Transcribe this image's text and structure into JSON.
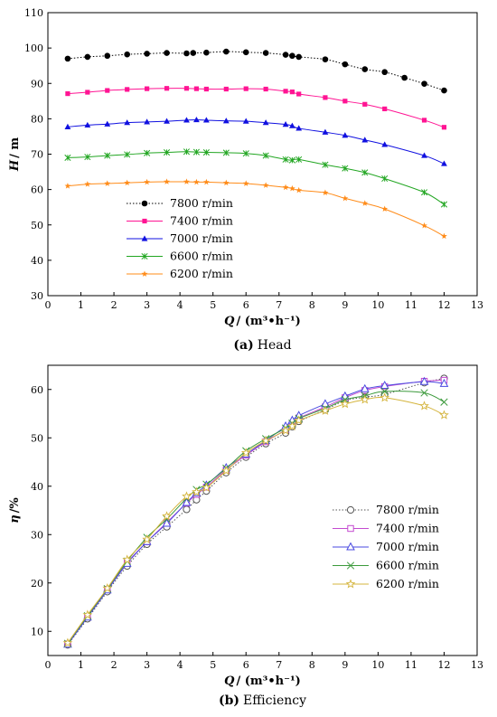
{
  "chart_data": [
    {
      "type": "line",
      "caption_label": "(a)",
      "caption_text": "Head",
      "ylabel_symbol": "H",
      "ylabel_unit": "/ m",
      "xlabel_symbol": "Q",
      "xlabel_unit": "/ (m³•h⁻¹)",
      "xlim": [
        0,
        13
      ],
      "ylim": [
        30,
        110
      ],
      "xticks": [
        "0",
        "1",
        "2",
        "3",
        "4",
        "5",
        "6",
        "7",
        "8",
        "9",
        "10",
        "11",
        "12",
        "13"
      ],
      "yticks": [
        "30",
        "40",
        "50",
        "60",
        "70",
        "80",
        "90",
        "100",
        "110"
      ],
      "legend_position": "bottom-left",
      "series": [
        {
          "name": "7800 r/min",
          "color": "#000000",
          "marker": "circle",
          "dash": "dotted",
          "x": [
            0.6,
            1.2,
            1.8,
            2.4,
            3.0,
            3.6,
            4.2,
            4.4,
            4.8,
            5.4,
            6.0,
            6.6,
            7.2,
            7.4,
            7.6,
            8.4,
            9.0,
            9.6,
            10.2,
            10.8,
            11.4,
            12.0
          ],
          "y": [
            97.0,
            97.5,
            97.8,
            98.2,
            98.4,
            98.6,
            98.5,
            98.6,
            98.7,
            99.0,
            98.8,
            98.6,
            98.1,
            97.8,
            97.5,
            96.8,
            95.4,
            94.0,
            93.2,
            91.6,
            89.9,
            88.0
          ]
        },
        {
          "name": "7400 r/min",
          "color": "#ff1493",
          "marker": "square",
          "dash": "solid",
          "x": [
            0.6,
            1.2,
            1.8,
            2.4,
            3.0,
            3.6,
            4.2,
            4.5,
            4.8,
            5.4,
            6.0,
            6.6,
            7.2,
            7.4,
            7.6,
            8.4,
            9.0,
            9.6,
            10.2,
            11.4,
            12.0
          ],
          "y": [
            87.1,
            87.5,
            88.0,
            88.3,
            88.5,
            88.6,
            88.6,
            88.5,
            88.4,
            88.4,
            88.5,
            88.4,
            87.8,
            87.6,
            87.0,
            86.0,
            85.0,
            84.1,
            82.8,
            79.6,
            77.6
          ]
        },
        {
          "name": "7000 r/min",
          "color": "#1010e0",
          "marker": "triangle",
          "dash": "solid",
          "x": [
            0.6,
            1.2,
            1.8,
            2.4,
            3.0,
            3.6,
            4.2,
            4.5,
            4.8,
            5.4,
            6.0,
            6.6,
            7.2,
            7.4,
            7.6,
            8.4,
            9.0,
            9.6,
            10.2,
            11.4,
            12.0
          ],
          "y": [
            77.7,
            78.2,
            78.5,
            78.9,
            79.1,
            79.3,
            79.6,
            79.7,
            79.6,
            79.4,
            79.3,
            78.9,
            78.4,
            78.0,
            77.3,
            76.2,
            75.3,
            74.0,
            72.7,
            69.6,
            67.3
          ]
        },
        {
          "name": "6600 r/min",
          "color": "#22a622",
          "marker": "cross",
          "dash": "solid",
          "x": [
            0.6,
            1.2,
            1.8,
            2.4,
            3.0,
            3.6,
            4.2,
            4.5,
            4.8,
            5.4,
            6.0,
            6.6,
            7.2,
            7.4,
            7.6,
            8.4,
            9.0,
            9.6,
            10.2,
            11.4,
            12.0
          ],
          "y": [
            69.0,
            69.2,
            69.6,
            69.9,
            70.3,
            70.5,
            70.7,
            70.6,
            70.5,
            70.4,
            70.2,
            69.6,
            68.5,
            68.3,
            68.5,
            67.0,
            66.0,
            64.8,
            63.1,
            59.2,
            55.8
          ]
        },
        {
          "name": "6200 r/min",
          "color": "#ff8c1a",
          "marker": "star",
          "dash": "solid",
          "x": [
            0.6,
            1.2,
            1.8,
            2.4,
            3.0,
            3.6,
            4.2,
            4.5,
            4.8,
            5.4,
            6.0,
            6.6,
            7.2,
            7.4,
            7.6,
            8.4,
            9.0,
            9.6,
            10.2,
            11.4,
            12.0
          ],
          "y": [
            61.0,
            61.5,
            61.7,
            61.9,
            62.1,
            62.2,
            62.2,
            62.1,
            62.1,
            61.9,
            61.7,
            61.2,
            60.6,
            60.3,
            59.8,
            59.1,
            57.5,
            56.1,
            54.5,
            49.8,
            46.8
          ]
        }
      ]
    },
    {
      "type": "line",
      "caption_label": "(b)",
      "caption_text": "Efficiency",
      "ylabel_symbol": "η",
      "ylabel_unit": "/%",
      "xlabel_symbol": "Q",
      "xlabel_unit": "/ (m³•h⁻¹)",
      "xlim": [
        0,
        13
      ],
      "ylim": [
        5,
        65
      ],
      "xticks": [
        "0",
        "1",
        "2",
        "3",
        "4",
        "5",
        "6",
        "7",
        "8",
        "9",
        "10",
        "11",
        "12",
        "13"
      ],
      "yticks": [
        "10",
        "20",
        "30",
        "40",
        "50",
        "60"
      ],
      "legend_position": "bottom-right",
      "series": [
        {
          "name": "7800 r/min",
          "color": "#555555",
          "marker": "circle-open",
          "dash": "dotted",
          "x": [
            0.6,
            1.2,
            1.8,
            2.4,
            3.0,
            3.6,
            4.2,
            4.5,
            4.8,
            5.4,
            6.0,
            6.6,
            7.2,
            7.4,
            7.6,
            8.4,
            9.0,
            9.6,
            10.2,
            11.4,
            12.0
          ],
          "y": [
            7.2,
            12.6,
            18.2,
            23.5,
            28.0,
            31.6,
            35.2,
            37.2,
            39.0,
            42.8,
            46.0,
            48.8,
            51.0,
            52.3,
            53.4,
            55.8,
            57.7,
            58.4,
            59.0,
            61.4,
            62.3
          ]
        },
        {
          "name": "7400 r/min",
          "color": "#c44ad0",
          "marker": "square-open",
          "dash": "solid",
          "x": [
            0.6,
            1.2,
            1.8,
            2.4,
            3.0,
            3.6,
            4.2,
            4.5,
            4.8,
            5.4,
            6.0,
            6.6,
            7.2,
            7.4,
            7.6,
            8.4,
            9.0,
            9.6,
            10.2,
            11.4,
            12.0
          ],
          "y": [
            7.4,
            13.0,
            18.7,
            24.2,
            28.5,
            32.5,
            36.5,
            38.3,
            39.8,
            43.4,
            46.4,
            49.2,
            51.7,
            53.0,
            54.1,
            56.4,
            58.3,
            59.8,
            60.6,
            61.7,
            61.9
          ]
        },
        {
          "name": "7000 r/min",
          "color": "#4a4ae0",
          "marker": "triangle-open",
          "dash": "solid",
          "x": [
            0.6,
            1.2,
            1.8,
            2.4,
            3.0,
            3.6,
            4.2,
            4.5,
            4.8,
            5.4,
            6.0,
            6.6,
            7.2,
            7.4,
            7.6,
            8.4,
            9.0,
            9.6,
            10.2,
            11.4,
            12.0
          ],
          "y": [
            7.3,
            12.9,
            18.5,
            24.0,
            28.5,
            32.3,
            36.6,
            38.6,
            40.2,
            43.8,
            46.6,
            49.4,
            52.4,
            53.6,
            54.6,
            57.0,
            58.6,
            60.1,
            60.8,
            61.6,
            61.2
          ]
        },
        {
          "name": "6600 r/min",
          "color": "#3c9a3c",
          "marker": "x",
          "dash": "solid",
          "x": [
            0.6,
            1.2,
            1.8,
            2.4,
            3.0,
            3.6,
            4.2,
            4.5,
            4.8,
            5.4,
            6.0,
            6.6,
            7.2,
            7.4,
            7.6,
            8.4,
            9.0,
            9.6,
            10.2,
            11.4,
            12.0
          ],
          "y": [
            7.5,
            13.2,
            18.8,
            24.5,
            29.4,
            33.2,
            37.5,
            39.3,
            40.4,
            43.7,
            47.3,
            49.8,
            52.0,
            53.0,
            54.0,
            56.1,
            57.9,
            58.7,
            59.6,
            59.3,
            57.4
          ]
        },
        {
          "name": "6200 r/min",
          "color": "#d4b43c",
          "marker": "star-open",
          "dash": "solid",
          "x": [
            0.6,
            1.2,
            1.8,
            2.4,
            3.0,
            3.6,
            4.2,
            4.5,
            4.8,
            5.4,
            6.0,
            6.6,
            7.2,
            7.4,
            7.6,
            8.4,
            9.0,
            9.6,
            10.2,
            11.4,
            12.0
          ],
          "y": [
            7.6,
            13.4,
            18.9,
            24.8,
            29.0,
            33.8,
            37.9,
            38.8,
            39.7,
            43.2,
            46.9,
            49.4,
            51.5,
            52.4,
            53.6,
            55.6,
            57.0,
            57.9,
            58.3,
            56.6,
            54.7
          ]
        }
      ]
    }
  ]
}
